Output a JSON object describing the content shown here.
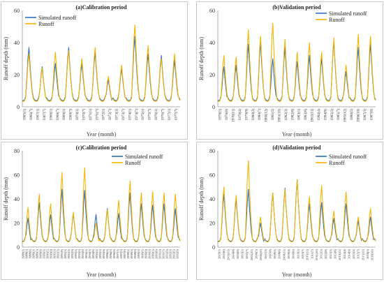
{
  "colors": {
    "simulated": "#2E6FBF",
    "observed": "#F5B400",
    "axis": "#999999"
  },
  "chart_data": [
    {
      "type": "line",
      "title": "(a)Calibration period",
      "xlabel": "Year (month)",
      "ylabel": "Runoff depth (mm)",
      "ylim": [
        0,
        60
      ],
      "yticks": [
        0,
        20,
        40,
        60
      ],
      "legend_position": "top-left",
      "x": [
        "1965(1)",
        "1966(7)",
        "1967(1)",
        "1967(7)",
        "1968(1)",
        "1968(7)",
        "1969(1)",
        "1969(7)",
        "1970(1)",
        "1970(7)",
        "1971(1)",
        "1971(7)",
        "1972(1)",
        "1972(7)",
        "1973(1)",
        "1973(7)",
        "1974(1)",
        "1974(7)",
        "1975(1)",
        "1975(7)",
        "1976(1)",
        "1976(7)",
        "1977(1)",
        "1977(7)"
      ],
      "peaks": {
        "simulated": [
          37,
          25,
          27,
          37,
          27,
          34,
          17,
          24,
          44,
          33,
          32,
          29
        ],
        "observed": [
          33,
          24,
          34,
          35,
          30,
          37,
          19,
          26,
          51,
          38,
          30,
          33
        ]
      },
      "series": [
        {
          "name": "Simulated runoff"
        },
        {
          "name": "Runoff"
        }
      ]
    },
    {
      "type": "line",
      "title": "(b)Validation period",
      "xlabel": "Year (month)",
      "ylabel": "Runoff depth (mm)",
      "ylim": [
        0,
        60
      ],
      "yticks": [
        0,
        20,
        40,
        60
      ],
      "legend_position": "top-right",
      "x": [
        "1978(1)",
        "1978(6)",
        "1978(11)",
        "1979(4)",
        "1979(9)",
        "1980(2)",
        "1980(7)",
        "1980(12)",
        "1981(5)",
        "1981(10)",
        "1982(3)",
        "1982(8)",
        "1983(1)",
        "1983(6)",
        "1983(11)",
        "1984(4)",
        "1984(9)",
        "1985(2)",
        "1985(7)",
        "1985(12)",
        "1986(5)",
        "1986(10)",
        "1987(3)",
        "1987(8)"
      ],
      "peaks": {
        "simulated": [
          25,
          26,
          39,
          40,
          30,
          37,
          28,
          32,
          30,
          41,
          22,
          37,
          39
        ],
        "observed": [
          32,
          31,
          48,
          44,
          52,
          42,
          34,
          40,
          34,
          43,
          26,
          45,
          44
        ]
      },
      "series": [
        {
          "name": "Simulated runoff"
        },
        {
          "name": "Runoff"
        }
      ]
    },
    {
      "type": "line",
      "title": "(c)Calibration period",
      "xlabel": "Year (month)",
      "ylabel": "Runoff depth (mm)",
      "ylim": [
        0,
        80
      ],
      "yticks": [
        0,
        20,
        40,
        60,
        80
      ],
      "legend_position": "top-right",
      "x": [
        "1988(1)",
        "1988(5)",
        "1988(9)",
        "1989(1)",
        "1989(5)",
        "1989(9)",
        "1990(1)",
        "1990(5)",
        "1990(9)",
        "1991(1)",
        "1991(5)",
        "1991(9)",
        "1992(1)",
        "1992(5)",
        "1992(9)",
        "1993(1)",
        "1993(5)",
        "1993(9)",
        "1994(1)",
        "1994(5)",
        "1994(9)",
        "1995(1)",
        "1995(5)",
        "1995(9)",
        "1996(1)",
        "1996(5)",
        "1996(9)",
        "1997(1)",
        "1997(5)",
        "1997(9)",
        "1998(1)",
        "1998(5)",
        "1998(9)",
        "1999(1)",
        "1999(5)",
        "1999(9)",
        "2000(1)",
        "2000(5)",
        "2000(9)",
        "2001(1)",
        "2001(5)",
        "2001(9)",
        "2002(1)",
        "2002(5)",
        "2002(9)"
      ],
      "peaks": {
        "simulated": [
          24,
          37,
          27,
          48,
          28,
          47,
          27,
          32,
          28,
          45,
          36,
          35,
          36,
          32
        ],
        "observed": [
          33,
          44,
          36,
          62,
          29,
          66,
          20,
          31,
          39,
          55,
          45,
          46,
          45,
          44
        ]
      },
      "series": [
        {
          "name": "Simulated runoff"
        },
        {
          "name": "Runoff"
        }
      ]
    },
    {
      "type": "line",
      "title": "(d)Validation period",
      "xlabel": "Year (month)",
      "ylabel": "Runoff depth (mm)",
      "ylim": [
        0,
        80
      ],
      "yticks": [
        0,
        20,
        40,
        60,
        80
      ],
      "legend_position": "top-right",
      "x": [
        "2003(1)",
        "2003(6)",
        "2003(11)",
        "2004(4)",
        "2004(9)",
        "2005(2)",
        "2005(7)",
        "2005(12)",
        "2006(5)",
        "2006(10)",
        "2007(3)",
        "2007(8)",
        "2008(1)",
        "2008(6)",
        "2008(11)",
        "2009(4)",
        "2009(9)",
        "2010(2)",
        "2010(7)",
        "2010(12)",
        "2011(5)",
        "2011(10)",
        "2012(3)",
        "2012(8)",
        "2013(1)",
        "2013(6)",
        "2013(11)",
        "2014(4)",
        "2014(9)",
        "2015(2)",
        "2015(7)",
        "2015(12)",
        "2016(5)",
        "2016(10)"
      ],
      "peaks": {
        "simulated": [
          44,
          40,
          48,
          20,
          45,
          49,
          56,
          36,
          37,
          24,
          36,
          22,
          25
        ],
        "observed": [
          50,
          43,
          72,
          25,
          45,
          48,
          56,
          42,
          51,
          30,
          46,
          25,
          32
        ]
      },
      "series": [
        {
          "name": "Simulated runoff"
        },
        {
          "name": "Runoff"
        }
      ]
    }
  ]
}
